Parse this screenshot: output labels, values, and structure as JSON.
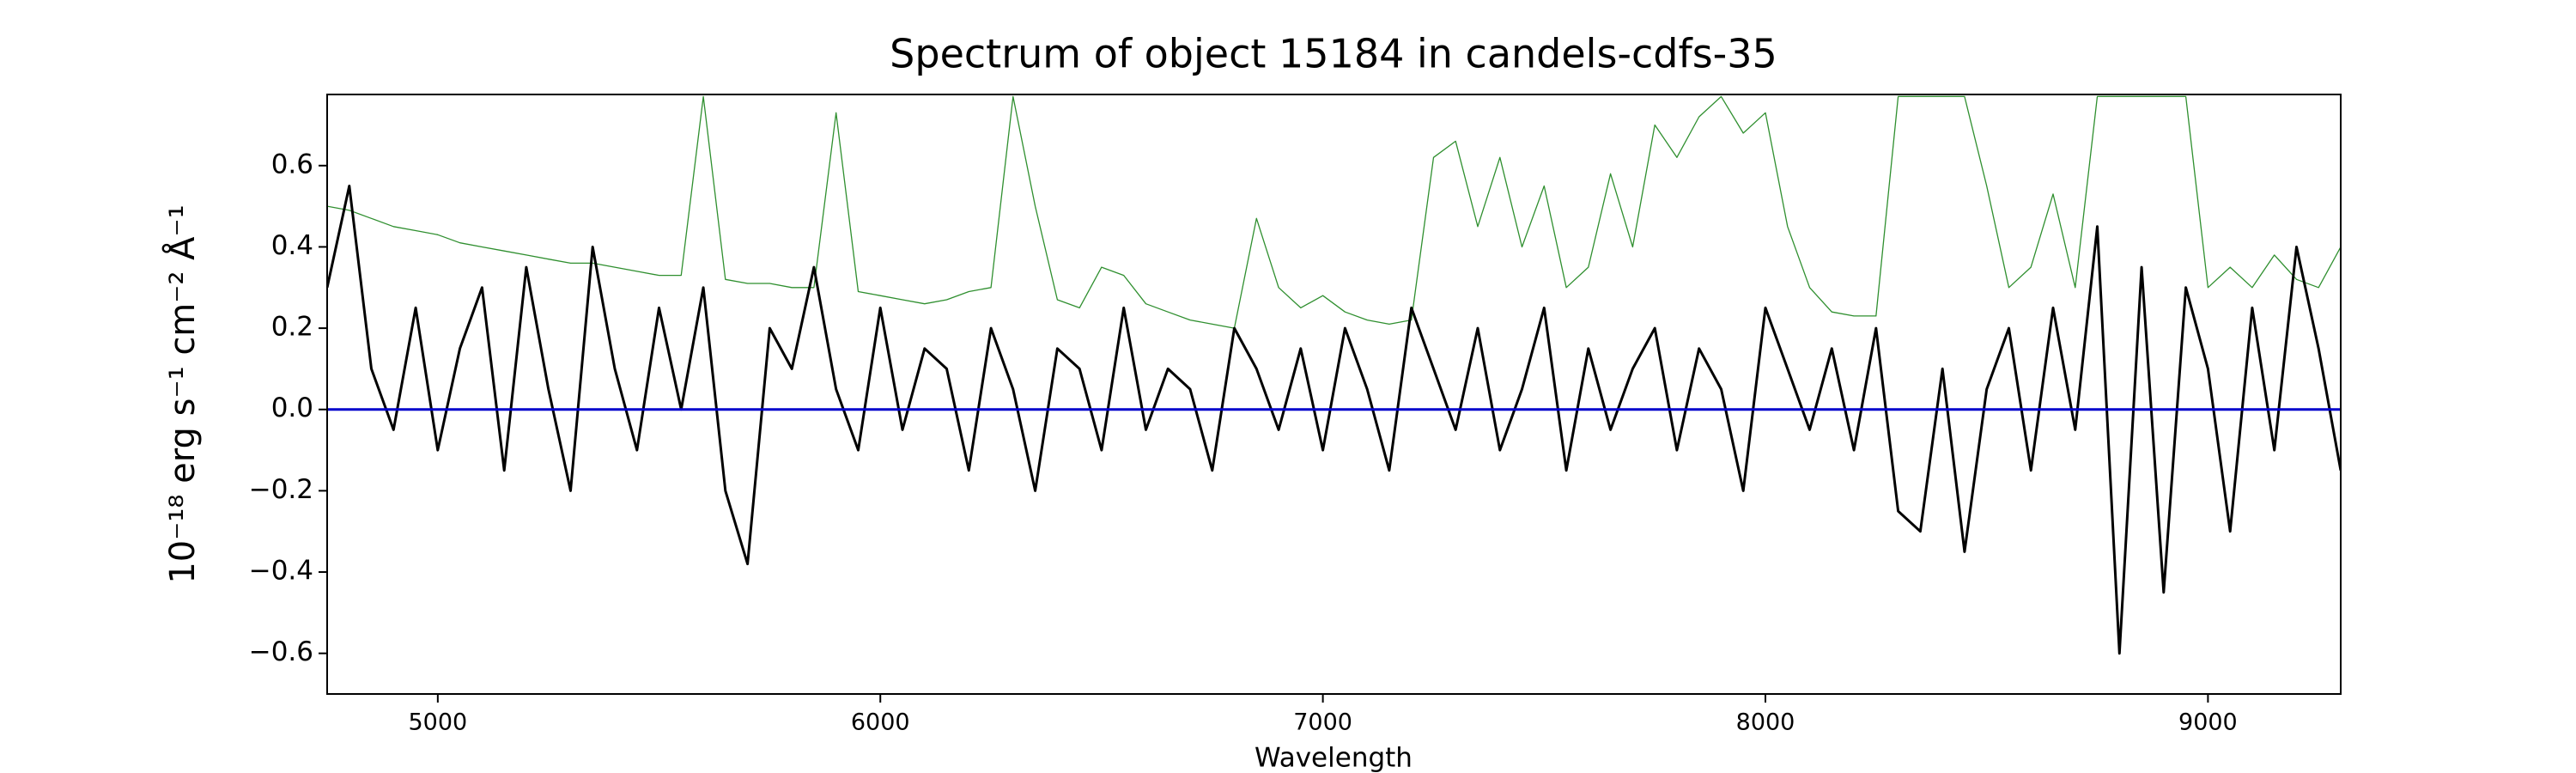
{
  "chart_data": {
    "type": "line",
    "title": "Spectrum of object 15184 in candels-cdfs-35",
    "x_label": "Wavelength",
    "y_label": "10⁻¹⁸ erg s⁻¹ cm⁻² Å⁻¹",
    "xlim": [
      4750,
      9300
    ],
    "ylim": [
      -0.7,
      0.775
    ],
    "xticks": [
      5000,
      6000,
      7000,
      8000,
      9000
    ],
    "yticks": [
      {
        "value": -0.6,
        "label": "−0.6"
      },
      {
        "value": -0.4,
        "label": "−0.4"
      },
      {
        "value": -0.2,
        "label": "−0.2"
      },
      {
        "value": 0.0,
        "label": "0.0"
      },
      0.2,
      0.4,
      0.6
    ],
    "x": [
      4750,
      4800,
      4850,
      4900,
      4950,
      5000,
      5050,
      5100,
      5150,
      5200,
      5250,
      5300,
      5350,
      5400,
      5450,
      5500,
      5550,
      5600,
      5650,
      5700,
      5750,
      5800,
      5850,
      5900,
      5950,
      6000,
      6050,
      6100,
      6150,
      6200,
      6250,
      6300,
      6350,
      6400,
      6450,
      6500,
      6550,
      6600,
      6650,
      6700,
      6750,
      6800,
      6850,
      6900,
      6950,
      7000,
      7050,
      7100,
      7150,
      7200,
      7250,
      7300,
      7350,
      7400,
      7450,
      7500,
      7550,
      7600,
      7650,
      7700,
      7750,
      7800,
      7850,
      7900,
      7950,
      8000,
      8050,
      8100,
      8150,
      8200,
      8250,
      8300,
      8350,
      8400,
      8450,
      8500,
      8550,
      8600,
      8650,
      8700,
      8750,
      8800,
      8850,
      8900,
      8950,
      9000,
      9050,
      9100,
      9150,
      9200,
      9250,
      9300
    ],
    "series": [
      {
        "color": "#2f8f2f",
        "values": [
          0.5,
          0.49,
          0.47,
          0.45,
          0.44,
          0.43,
          0.41,
          0.4,
          0.39,
          0.38,
          0.37,
          0.36,
          0.36,
          0.35,
          0.34,
          0.33,
          0.33,
          0.77,
          0.32,
          0.31,
          0.31,
          0.3,
          0.3,
          0.73,
          0.29,
          0.28,
          0.27,
          0.26,
          0.27,
          0.29,
          0.3,
          0.77,
          0.5,
          0.27,
          0.25,
          0.35,
          0.33,
          0.26,
          0.24,
          0.22,
          0.21,
          0.2,
          0.47,
          0.3,
          0.25,
          0.28,
          0.24,
          0.22,
          0.21,
          0.22,
          0.62,
          0.66,
          0.45,
          0.62,
          0.4,
          0.55,
          0.3,
          0.35,
          0.58,
          0.4,
          0.7,
          0.62,
          0.72,
          0.77,
          0.68,
          0.73,
          0.45,
          0.3,
          0.24,
          0.23,
          0.23,
          0.77,
          0.77,
          0.77,
          0.77,
          0.55,
          0.3,
          0.35,
          0.53,
          0.3,
          0.77,
          0.77,
          0.77,
          0.77,
          0.77,
          0.3,
          0.35,
          0.3,
          0.38,
          0.32,
          0.3,
          0.4
        ]
      },
      {
        "color": "#000000",
        "values": [
          0.3,
          0.55,
          0.1,
          -0.05,
          0.25,
          -0.1,
          0.15,
          0.3,
          -0.15,
          0.35,
          0.05,
          -0.2,
          0.4,
          0.1,
          -0.1,
          0.25,
          0.0,
          0.3,
          -0.2,
          -0.38,
          0.2,
          0.1,
          0.35,
          0.05,
          -0.1,
          0.25,
          -0.05,
          0.15,
          0.1,
          -0.15,
          0.2,
          0.05,
          -0.2,
          0.15,
          0.1,
          -0.1,
          0.25,
          -0.05,
          0.1,
          0.05,
          -0.15,
          0.2,
          0.1,
          -0.05,
          0.15,
          -0.1,
          0.2,
          0.05,
          -0.15,
          0.25,
          0.1,
          -0.05,
          0.2,
          -0.1,
          0.05,
          0.25,
          -0.15,
          0.15,
          -0.05,
          0.1,
          0.2,
          -0.1,
          0.15,
          0.05,
          -0.2,
          0.25,
          0.1,
          -0.05,
          0.15,
          -0.1,
          0.2,
          -0.25,
          -0.3,
          0.1,
          -0.35,
          0.05,
          0.2,
          -0.15,
          0.25,
          -0.05,
          0.45,
          -0.6,
          0.35,
          -0.45,
          0.3,
          0.1,
          -0.3,
          0.25,
          -0.1,
          0.4,
          0.15,
          -0.15
        ]
      },
      {
        "color": "#0000cc",
        "values": [
          0,
          0,
          0,
          0,
          0,
          0,
          0,
          0,
          0,
          0,
          0,
          0,
          0,
          0,
          0,
          0,
          0,
          0,
          0,
          0,
          0,
          0,
          0,
          0,
          0,
          0,
          0,
          0,
          0,
          0,
          0,
          0,
          0,
          0,
          0,
          0,
          0,
          0,
          0,
          0,
          0,
          0,
          0,
          0,
          0,
          0,
          0,
          0,
          0,
          0,
          0,
          0,
          0,
          0,
          0,
          0,
          0,
          0,
          0,
          0,
          0,
          0,
          0,
          0,
          0,
          0,
          0,
          0,
          0,
          0,
          0,
          0,
          0,
          0,
          0,
          0,
          0,
          0,
          0,
          0,
          0,
          0,
          0,
          0,
          0,
          0,
          0,
          0,
          0,
          0,
          0,
          0
        ]
      }
    ]
  }
}
